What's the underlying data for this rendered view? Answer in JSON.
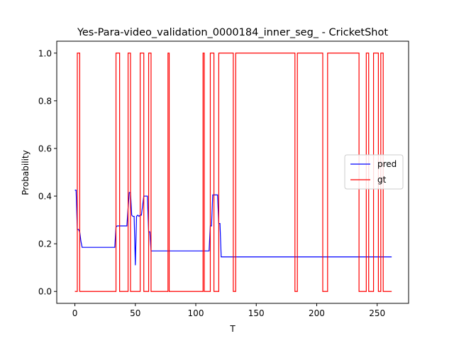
{
  "chart_data": {
    "type": "line",
    "title": "Yes-Para-video_validation_0000184_inner_seg_ - CricketShot",
    "xlabel": "T",
    "ylabel": "Probability",
    "xlim": [
      -15,
      276
    ],
    "ylim": [
      -0.05,
      1.05
    ],
    "xticks": [
      0,
      50,
      100,
      150,
      200,
      250
    ],
    "yticks": [
      0.0,
      0.2,
      0.4,
      0.6,
      0.8,
      1.0
    ],
    "xtick_labels": [
      "0",
      "50",
      "100",
      "150",
      "200",
      "250"
    ],
    "ytick_labels": [
      "0.0",
      "0.2",
      "0.4",
      "0.6",
      "0.8",
      "1.0"
    ],
    "grid": false,
    "legend_position": "right",
    "series": [
      {
        "name": "pred",
        "color": "#0000ff",
        "step": false,
        "x": [
          0,
          1,
          2,
          3,
          4,
          5,
          6,
          10,
          20,
          32,
          33,
          34,
          35,
          40,
          43,
          44,
          45,
          46,
          47,
          48,
          49,
          50,
          51,
          52,
          53,
          54,
          55,
          56,
          57,
          58,
          59,
          60,
          61,
          62,
          63,
          64,
          70,
          80,
          100,
          108,
          109,
          110,
          111,
          112,
          113,
          114,
          115,
          116,
          117,
          118,
          119,
          120,
          121,
          122,
          130,
          150,
          200,
          250,
          262
        ],
        "y": [
          0.425,
          0.425,
          0.26,
          0.26,
          0.25,
          0.21,
          0.185,
          0.185,
          0.185,
          0.185,
          0.185,
          0.27,
          0.275,
          0.275,
          0.275,
          0.35,
          0.415,
          0.415,
          0.32,
          0.315,
          0.315,
          0.11,
          0.315,
          0.32,
          0.315,
          0.32,
          0.32,
          0.36,
          0.4,
          0.4,
          0.4,
          0.4,
          0.25,
          0.25,
          0.17,
          0.17,
          0.17,
          0.17,
          0.17,
          0.17,
          0.17,
          0.17,
          0.17,
          0.275,
          0.275,
          0.405,
          0.405,
          0.405,
          0.405,
          0.405,
          0.285,
          0.285,
          0.145,
          0.145,
          0.145,
          0.145,
          0.145,
          0.145,
          0.145
        ]
      },
      {
        "name": "gt",
        "color": "#ff0000",
        "step": true,
        "x": [
          0,
          2,
          4,
          34,
          37,
          44,
          46,
          54,
          57,
          61,
          63,
          77,
          78,
          102,
          106,
          107,
          112,
          115,
          119,
          131,
          133,
          182,
          184,
          205,
          209,
          235,
          241,
          243,
          247,
          251,
          253,
          255,
          257,
          262
        ],
        "y": [
          0,
          1,
          0,
          1,
          0,
          1,
          0,
          1,
          0,
          1,
          0,
          1,
          0,
          0,
          1,
          0,
          1,
          0,
          1,
          0,
          1,
          0,
          1,
          0,
          1,
          0,
          1,
          0,
          1,
          0,
          1,
          0,
          0,
          0
        ]
      }
    ]
  }
}
